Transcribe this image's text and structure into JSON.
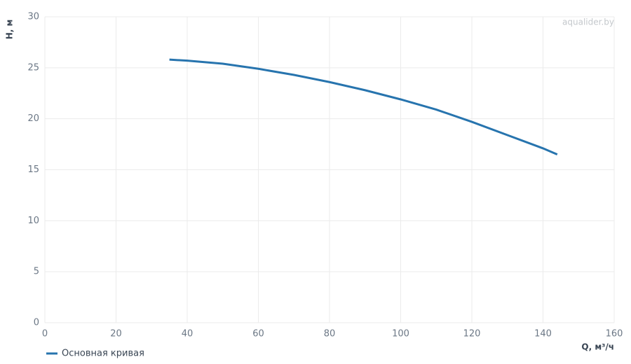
{
  "chart_data": {
    "type": "line",
    "x_label": "Q, м³/ч",
    "y_label": "H, м",
    "watermark": "aqualider.by",
    "x": [
      35,
      40,
      50,
      60,
      70,
      80,
      90,
      100,
      110,
      120,
      130,
      140,
      144
    ],
    "series": [
      {
        "name": "Основная кривая",
        "color": "#2774ae",
        "values": [
          25.8,
          25.7,
          25.4,
          24.9,
          24.3,
          23.6,
          22.8,
          21.9,
          20.9,
          19.7,
          18.4,
          17.1,
          16.5
        ]
      }
    ],
    "xlim": [
      0,
      160
    ],
    "xticks": [
      0,
      20,
      40,
      60,
      80,
      100,
      120,
      140,
      160
    ],
    "ylim": [
      0,
      30
    ],
    "yticks": [
      0,
      5,
      10,
      15,
      20,
      25,
      30
    ],
    "grid": true,
    "legend": "bottom-left"
  }
}
